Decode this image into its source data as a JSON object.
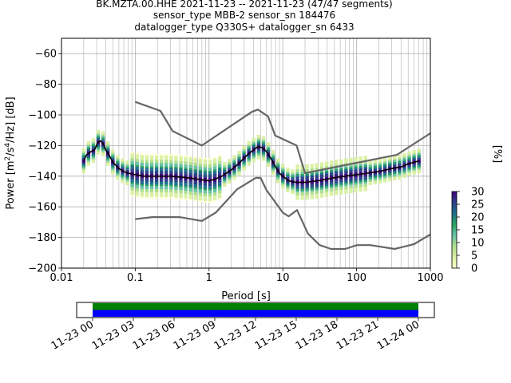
{
  "titles": {
    "line1": "BK.MZTA.00.HHE   2021-11-23 -- 2021-11-23  (47/47 segments)",
    "line2": "sensor_type MBB-2 sensor_sn 184476",
    "line3": "datalogger_type Q330S+ datalogger_sn 6433"
  },
  "chart_data": [
    {
      "type": "heatmap",
      "title": "",
      "xlabel": "Period [s]",
      "ylabel": "Power [m²/s⁴/Hz] [dB]",
      "x_scale": "log",
      "xlim": [
        0.01,
        1000
      ],
      "ylim": [
        -200,
        -50
      ],
      "grid": true,
      "x_tick_labels": [
        "0.01",
        "0.1",
        "1",
        "10",
        "100",
        "1000"
      ],
      "y_tick_labels": [
        "−60",
        "−80",
        "−100",
        "−120",
        "−140",
        "−160",
        "−180",
        "−200"
      ],
      "y_ticks": [
        -60,
        -80,
        -100,
        -120,
        -140,
        -160,
        -180,
        -200
      ],
      "colorbar": {
        "label": "[%]",
        "range": [
          0,
          30
        ],
        "tick_labels": [
          "0",
          "5",
          "10",
          "15",
          "20",
          "25",
          "30"
        ],
        "colors": [
          "#ffffcc",
          "#d9f0a3",
          "#addd8e",
          "#66c2a4",
          "#2ca25f",
          "#1d6f8a",
          "#2a3f86",
          "#3f007d"
        ]
      },
      "series": [
        {
          "name": "",
          "style": "mean",
          "color": "#000000",
          "x": [
            0.02,
            0.022,
            0.025,
            0.028,
            0.031,
            0.034,
            0.037,
            0.04,
            0.045,
            0.05,
            0.06,
            0.07,
            0.08,
            0.1,
            0.13,
            0.2,
            0.3,
            0.5,
            0.7,
            1.0,
            1.2,
            1.5,
            2,
            2.5,
            3,
            3.5,
            4,
            4.5,
            5,
            5.5,
            6,
            7,
            8,
            9,
            10,
            12,
            15,
            20,
            30,
            50,
            100,
            200,
            300,
            400,
            500,
            700
          ],
          "values": [
            -130,
            -126,
            -124,
            -123,
            -118,
            -117,
            -119,
            -123,
            -127,
            -131,
            -135,
            -137,
            -138,
            -139,
            -140,
            -140,
            -140,
            -141,
            -142,
            -143,
            -142,
            -140,
            -136,
            -132,
            -128,
            -125,
            -123,
            -121,
            -121,
            -122,
            -124,
            -129,
            -134,
            -138,
            -140,
            -143,
            -144,
            -144,
            -143,
            -141,
            -139,
            -137,
            -135,
            -134,
            -132,
            -130
          ]
        },
        {
          "name": "",
          "style": "high-noise-model",
          "color": "#666666",
          "x": [
            0.1,
            0.22,
            0.32,
            0.8,
            3.8,
            4.6,
            6.3,
            7.9,
            15.4,
            20,
            354,
            1000
          ],
          "values": [
            -91.5,
            -97.4,
            -110.5,
            -120,
            -98,
            -96.5,
            -101,
            -113.5,
            -120,
            -138,
            -126,
            -112
          ]
        },
        {
          "name": "",
          "style": "low-noise-model",
          "color": "#666666",
          "x": [
            0.1,
            0.17,
            0.4,
            0.8,
            1.24,
            2.4,
            4.3,
            5.0,
            6.0,
            10,
            12,
            15.6,
            21.9,
            31.6,
            45,
            70,
            101,
            154,
            328,
            600,
            1000
          ],
          "values": [
            -168,
            -166.7,
            -166.7,
            -169.2,
            -163.7,
            -148.6,
            -141.1,
            -141.1,
            -149,
            -163.8,
            -166.2,
            -162.1,
            -177.5,
            -185,
            -187.5,
            -187.5,
            -185,
            -185,
            -187.5,
            -184.4,
            -178
          ]
        }
      ]
    },
    {
      "type": "timeline",
      "x_tick_labels": [
        "11-23 00",
        "11-23 03",
        "11-23 06",
        "11-23 09",
        "11-23 12",
        "11-23 15",
        "11-23 18",
        "11-23 21",
        "11-24 00"
      ],
      "bars": [
        {
          "color": "#008000",
          "start": "11-23 00",
          "end": "11-24 00"
        },
        {
          "color": "#0000ff",
          "start": "11-23 00",
          "end": "11-24 00"
        }
      ]
    }
  ]
}
